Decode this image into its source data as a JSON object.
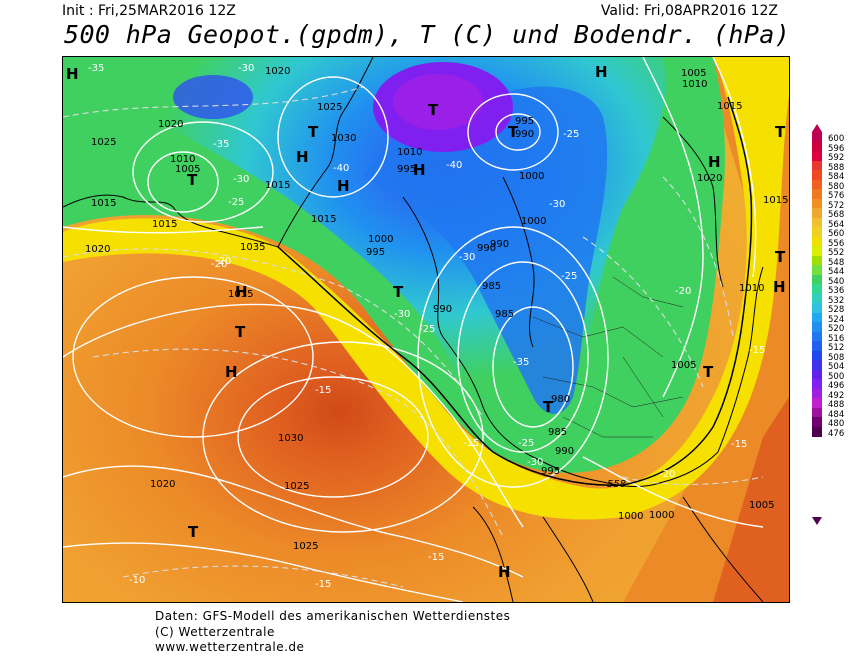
{
  "header": {
    "init": "Init : Fri,25MAR2016 12Z",
    "valid": "Valid: Fri,08APR2016 12Z",
    "title": "500 hPa Geopot.(gpdm), T (C) und Bodendr. (hPa)"
  },
  "footer": {
    "line1": "Daten: GFS-Modell des amerikanischen Wetterdienstes",
    "line2": "(C) Wetterzentrale",
    "line3": "www.wetterzentrale.de"
  },
  "colors": {
    "warm_orange": "#f0a030",
    "deep_orange": "#e07020",
    "center_red": "#d05020",
    "yellow": "#f5e000",
    "green": "#40d060",
    "cyan": "#30c8c0",
    "blue": "#2080e0",
    "violet": "#8020f0"
  },
  "legend": {
    "values": [
      "600",
      "596",
      "592",
      "588",
      "584",
      "580",
      "576",
      "572",
      "568",
      "564",
      "560",
      "556",
      "552",
      "548",
      "544",
      "540",
      "536",
      "532",
      "528",
      "524",
      "520",
      "516",
      "512",
      "508",
      "504",
      "500",
      "496",
      "492",
      "488",
      "484",
      "480",
      "476"
    ],
    "colors": [
      "#c00050",
      "#d00040",
      "#e00040",
      "#e83830",
      "#f04820",
      "#f06020",
      "#f07820",
      "#f09020",
      "#f0a830",
      "#f0c030",
      "#f0d020",
      "#f0e000",
      "#d8f000",
      "#a0e000",
      "#70e040",
      "#40d060",
      "#30d890",
      "#30d0c0",
      "#30c0e0",
      "#20a8f0",
      "#2090f0",
      "#2078f0",
      "#2060f0",
      "#2048f0",
      "#4030f0",
      "#6020f0",
      "#8020f0",
      "#a020e0",
      "#c020d0",
      "#a010a0",
      "#700070",
      "#500050"
    ]
  },
  "map": {
    "pressure_labels": [
      "1020",
      "1025",
      "1035",
      "1020",
      "1020",
      "1015",
      "1010",
      "1005",
      "1005",
      "1025",
      "1030",
      "1035",
      "1015",
      "1015",
      "1000",
      "995",
      "990",
      "1010",
      "1005",
      "1015",
      "1015",
      "1010",
      "1020",
      "1015",
      "1030",
      "1035",
      "1010",
      "1025",
      "1030",
      "1015",
      "1000",
      "985",
      "990",
      "985",
      "990",
      "980",
      "985",
      "990",
      "995",
      "1000",
      "1000",
      "1005",
      "1005",
      "1030",
      "1025",
      "1020",
      "1020",
      "1000",
      "1005"
    ],
    "temp_labels": [
      "-35",
      "-30",
      "-35",
      "-40",
      "-30",
      "-25",
      "-20",
      "-30",
      "-25",
      "-30",
      "-25",
      "-35",
      "-40",
      "-30",
      "-25",
      "-20",
      "-25",
      "-30",
      "-25",
      "-15",
      "-15",
      "-15",
      "-20",
      "-15",
      "-10",
      "-15",
      "-15",
      "-25",
      "-20",
      "-15"
    ],
    "h_marker": "H",
    "t_marker": "T",
    "contour_558": "558"
  }
}
